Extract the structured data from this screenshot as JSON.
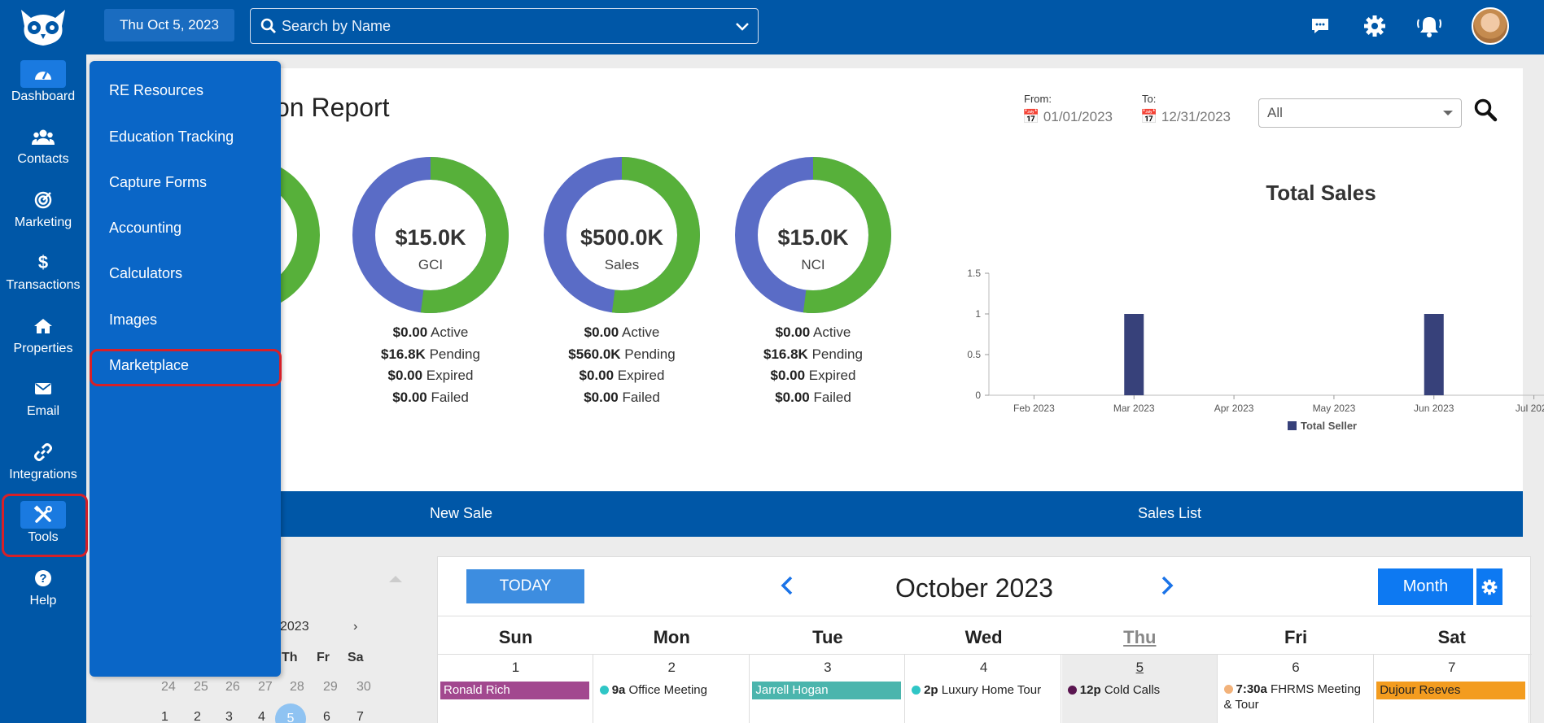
{
  "header": {
    "date": "Thu Oct 5, 2023",
    "search_placeholder": "Search by Name"
  },
  "nav": [
    {
      "label": "Dashboard",
      "icon": "dashboard-icon"
    },
    {
      "label": "Contacts",
      "icon": "contacts-icon"
    },
    {
      "label": "Marketing",
      "icon": "marketing-icon"
    },
    {
      "label": "Transactions",
      "icon": "dollar-icon"
    },
    {
      "label": "Properties",
      "icon": "home-icon"
    },
    {
      "label": "Email",
      "icon": "email-icon"
    },
    {
      "label": "Integrations",
      "icon": "link-icon"
    },
    {
      "label": "Tools",
      "icon": "tools-icon"
    },
    {
      "label": "Help",
      "icon": "help-icon"
    }
  ],
  "tools_menu": [
    "RE Resources",
    "Education Tracking",
    "Capture Forms",
    "Accounting",
    "Calculators",
    "Images",
    "Marketplace"
  ],
  "report": {
    "title_partial": "on Report",
    "from_label": "From:",
    "from_value": "01/01/2023",
    "to_label": "To:",
    "to_value": "12/31/2023",
    "filter_value": "All",
    "donuts": [
      {
        "value": "$15.0K",
        "label": "GCI",
        "green_fraction": 0.52,
        "active": "$0.00",
        "pending": "$16.8K",
        "expired": "$0.00",
        "failed": "$0.00"
      },
      {
        "value": "$500.0K",
        "label": "Sales",
        "green_fraction": 0.52,
        "active": "$0.00",
        "pending": "$560.0K",
        "expired": "$0.00",
        "failed": "$0.00"
      },
      {
        "value": "$15.0K",
        "label": "NCI",
        "green_fraction": 0.52,
        "active": "$0.00",
        "pending": "$16.8K",
        "expired": "$0.00",
        "failed": "$0.00"
      }
    ],
    "stat_labels": {
      "active": "Active",
      "pending": "Pending",
      "expired": "Expired",
      "failed": "Failed"
    },
    "actions": {
      "new_sale": "New Sale",
      "sales_list": "Sales List"
    }
  },
  "chart_data": {
    "type": "bar",
    "title": "Total Sales",
    "categories": [
      "Feb 2023",
      "Mar 2023",
      "Apr 2023",
      "May 2023",
      "Jun 2023",
      "Jul 2023"
    ],
    "series": [
      {
        "name": "Total Seller",
        "values": [
          0,
          1,
          0,
          0,
          1,
          0
        ],
        "color": "#37417a"
      }
    ],
    "yticks": [
      "0",
      "0.5",
      "1",
      "1.5"
    ],
    "ylim": [
      0,
      1.5
    ],
    "legend": "bottom"
  },
  "mini_calendar": {
    "month_partial": "2023",
    "next": "›",
    "headers": [
      "Th",
      "Fr",
      "Sa"
    ],
    "row1": [
      "24",
      "25",
      "26",
      "27",
      "28",
      "29",
      "30"
    ],
    "row2": [
      "1",
      "2",
      "3",
      "4",
      "5",
      "6",
      "7"
    ]
  },
  "calendar": {
    "today_label": "TODAY",
    "month_title": "October 2023",
    "view_label": "Month",
    "days_of_week": [
      "Sun",
      "Mon",
      "Tue",
      "Wed",
      "Thu",
      "Fri",
      "Sat"
    ],
    "days": [
      {
        "num": "1",
        "event": "Ronald Rich",
        "style": "bar",
        "color": "#a2488f"
      },
      {
        "num": "2",
        "time": "9a",
        "event": "Office Meeting",
        "style": "dot",
        "color": "#2fc6c6"
      },
      {
        "num": "3",
        "event": "Jarrell Hogan",
        "style": "bar",
        "color": "#4bb5ad"
      },
      {
        "num": "4",
        "time": "2p",
        "event": "Luxury Home Tour",
        "style": "dot",
        "color": "#2fc6c6"
      },
      {
        "num": "5",
        "time": "12p",
        "event": "Cold Calls",
        "style": "dot",
        "color": "#5a1550"
      },
      {
        "num": "6",
        "time": "7:30a",
        "event": "FHRMS Meeting & Tour",
        "style": "dot",
        "color": "#f2b27a"
      },
      {
        "num": "7",
        "event": "Dujour Reeves",
        "style": "bar",
        "color": "#f39c1f"
      }
    ]
  }
}
